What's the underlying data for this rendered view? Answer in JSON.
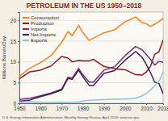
{
  "chart_data": {
    "type": "line",
    "title": "PETROLEUM IN THE US 1950–2018",
    "y_label": "Millions Barrels/Day",
    "annotations": [
      "U.S. Energy Information Administration, Monthly Energy Review, April 2019; www.eia.gov"
    ],
    "x": [
      1950,
      1955,
      1960,
      1965,
      1970,
      1973,
      1975,
      1978,
      1980,
      1983,
      1985,
      1990,
      1995,
      2000,
      2005,
      2008,
      2010,
      2012,
      2014,
      2016,
      2018
    ],
    "series": [
      {
        "name": "Consumption",
        "color": "#f58220",
        "values": [
          6.5,
          8.5,
          9.8,
          11.5,
          14.7,
          17.3,
          16.3,
          18.8,
          17.1,
          15.2,
          15.7,
          17.0,
          17.7,
          19.7,
          20.8,
          19.5,
          19.2,
          18.5,
          19.1,
          19.7,
          20.5
        ]
      },
      {
        "name": "Production",
        "color": "#8b1a1a",
        "values": [
          5.9,
          7.6,
          8.0,
          9.0,
          11.3,
          10.9,
          10.0,
          10.3,
          10.2,
          10.2,
          10.6,
          8.9,
          8.3,
          8.1,
          6.9,
          6.8,
          7.5,
          8.9,
          11.8,
          12.4,
          15.3
        ]
      },
      {
        "name": "Imports",
        "color": "#7b2a7b",
        "values": [
          0.9,
          1.2,
          1.8,
          2.5,
          3.4,
          6.3,
          6.1,
          8.4,
          6.9,
          5.1,
          5.1,
          8.0,
          8.8,
          11.5,
          13.7,
          12.9,
          11.8,
          10.6,
          9.2,
          10.1,
          9.9
        ]
      },
      {
        "name": "Net Imports",
        "color": "#3d1f4f",
        "values": [
          0.5,
          0.8,
          1.6,
          2.3,
          3.2,
          6.0,
          5.8,
          8.0,
          6.4,
          4.3,
          4.3,
          7.2,
          7.9,
          10.4,
          12.5,
          11.1,
          9.4,
          7.4,
          5.1,
          4.8,
          2.3
        ]
      },
      {
        "name": "Exports",
        "color": "#8fc4e0",
        "values": [
          0.3,
          0.4,
          0.2,
          0.2,
          0.26,
          0.23,
          0.2,
          0.36,
          0.54,
          0.74,
          0.78,
          0.86,
          0.95,
          1.04,
          1.17,
          1.8,
          2.35,
          3.2,
          4.2,
          5.3,
          7.6
        ]
      }
    ],
    "xlim": [
      1950,
      2018
    ],
    "xticks": [
      1950,
      1960,
      1970,
      1980,
      1990,
      2000,
      2010,
      2018
    ],
    "ylim": [
      0,
      22
    ],
    "yticks": [
      0,
      5,
      10,
      15,
      20
    ],
    "grid": true,
    "legend": "upper left"
  }
}
